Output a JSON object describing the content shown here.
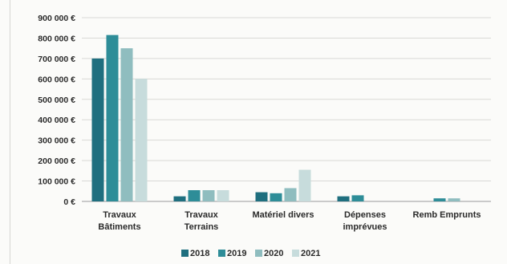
{
  "chart_data": {
    "type": "bar",
    "categories": [
      [
        "Travaux",
        "Bâtiments"
      ],
      [
        "Travaux",
        "Terrains"
      ],
      [
        "Matériel divers"
      ],
      [
        "Dépenses",
        "imprévues"
      ],
      [
        "Remb Emprunts"
      ]
    ],
    "series": [
      {
        "name": "2018",
        "color": "#1f6f7f",
        "values": [
          700000,
          25000,
          45000,
          25000,
          0
        ]
      },
      {
        "name": "2019",
        "color": "#2e8d98",
        "values": [
          815000,
          55000,
          40000,
          30000,
          15000
        ]
      },
      {
        "name": "2020",
        "color": "#8fbdbf",
        "values": [
          750000,
          55000,
          65000,
          0,
          15000
        ]
      },
      {
        "name": "2021",
        "color": "#c7dcdc",
        "values": [
          600000,
          55000,
          155000,
          0,
          0
        ]
      }
    ],
    "ylim": [
      0,
      900000
    ],
    "yticks": [
      {
        "value": 0,
        "label": "0 €"
      },
      {
        "value": 100000,
        "label": "100 000 €"
      },
      {
        "value": 200000,
        "label": "200 000 €"
      },
      {
        "value": 300000,
        "label": "300 000 €"
      },
      {
        "value": 400000,
        "label": "400 000 €"
      },
      {
        "value": 500000,
        "label": "500 000 €"
      },
      {
        "value": 600000,
        "label": "600 000 €"
      },
      {
        "value": 700000,
        "label": "700 000 €"
      },
      {
        "value": 800000,
        "label": "800 000 €"
      },
      {
        "value": 900000,
        "label": "900 000 €"
      }
    ],
    "grid": true,
    "legend_position": "bottom"
  }
}
